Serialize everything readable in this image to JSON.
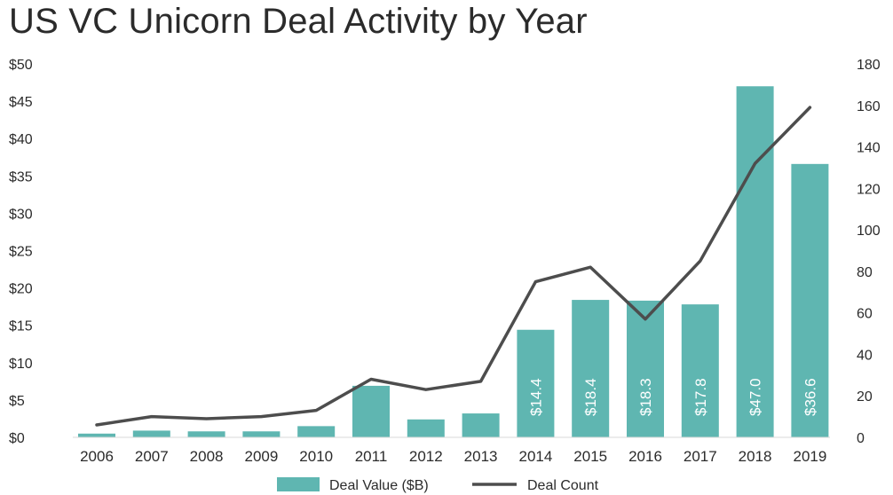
{
  "chart_data": {
    "type": "bar",
    "title": "US VC Unicorn Deal Activity by Year",
    "categories": [
      "2006",
      "2007",
      "2008",
      "2009",
      "2010",
      "2011",
      "2012",
      "2013",
      "2014",
      "2015",
      "2016",
      "2017",
      "2018",
      "2019"
    ],
    "series": [
      {
        "name": "Deal Value ($B)",
        "type": "bar",
        "axis": "left",
        "color": "#5fb6b1",
        "values": [
          0.5,
          0.9,
          0.8,
          0.8,
          1.5,
          6.9,
          2.4,
          3.2,
          14.4,
          18.4,
          18.3,
          17.8,
          47.0,
          36.6
        ],
        "data_labels": [
          "",
          "",
          "",
          "",
          "",
          "",
          "",
          "",
          "$14.4",
          "$18.4",
          "$18.3",
          "$17.8",
          "$47.0",
          "$36.6"
        ]
      },
      {
        "name": "Deal Count",
        "type": "line",
        "axis": "right",
        "color": "#4d4d4d",
        "values": [
          6,
          10,
          9,
          10,
          13,
          28,
          23,
          27,
          75,
          82,
          57,
          85,
          132,
          159
        ]
      }
    ],
    "left_axis": {
      "ylim": [
        0,
        50
      ],
      "ticks": [
        0,
        5,
        10,
        15,
        20,
        25,
        30,
        35,
        40,
        45,
        50
      ],
      "tick_labels": [
        "$0",
        "$5",
        "$10",
        "$15",
        "$20",
        "$25",
        "$30",
        "$35",
        "$40",
        "$45",
        "$50"
      ]
    },
    "right_axis": {
      "ylim": [
        0,
        180
      ],
      "ticks": [
        0,
        20,
        40,
        60,
        80,
        100,
        120,
        140,
        160,
        180
      ],
      "tick_labels": [
        "0",
        "20",
        "40",
        "60",
        "80",
        "100",
        "120",
        "140",
        "160",
        "180"
      ]
    },
    "grid": false,
    "legend_position": "bottom-center"
  }
}
